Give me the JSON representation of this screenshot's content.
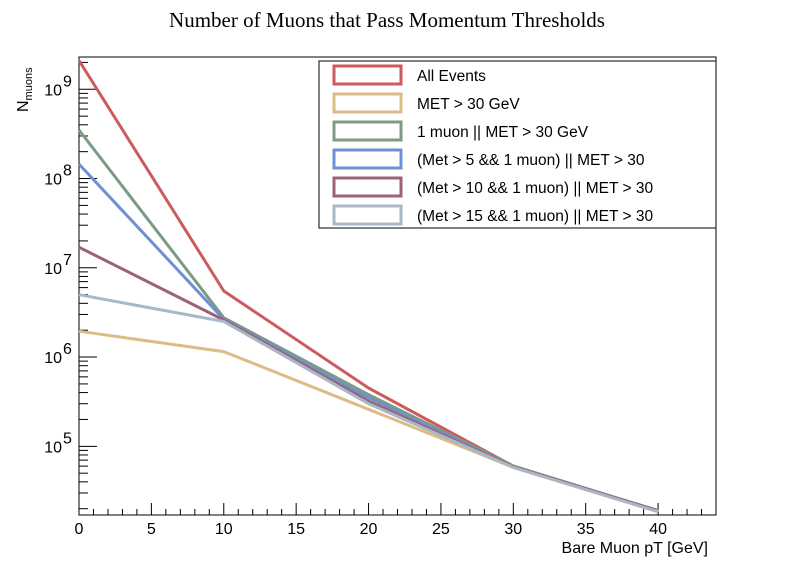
{
  "chart_data": {
    "type": "line",
    "title": "Number of Muons that Pass Momentum Thresholds",
    "xlabel": "Bare Muon pT [GeV]",
    "ylabel": "N",
    "ylabel_sub": "muons",
    "xlim": [
      0,
      44
    ],
    "ylim": [
      17000,
      2300000000
    ],
    "yscale": "log",
    "x_ticks": [
      0,
      5,
      10,
      15,
      20,
      25,
      30,
      35,
      40
    ],
    "y_ticks": [
      {
        "value": 100000,
        "base": "10",
        "exp": "5"
      },
      {
        "value": 1000000,
        "base": "10",
        "exp": "6"
      },
      {
        "value": 10000000,
        "base": "10",
        "exp": "7"
      },
      {
        "value": 100000000,
        "base": "10",
        "exp": "8"
      },
      {
        "value": 1000000000,
        "base": "10",
        "exp": "9"
      }
    ],
    "grid": false,
    "legend_position": "top-right",
    "x": [
      0,
      10,
      20,
      30,
      40
    ],
    "series": [
      {
        "name": "All Events",
        "color": "#cc5b5e",
        "values": [
          2100000000,
          5500000,
          450000,
          60000,
          19000
        ]
      },
      {
        "name": "MET > 30 GeV",
        "color": "#ddbb86",
        "values": [
          1950000,
          1150000,
          260000,
          58000,
          18500
        ]
      },
      {
        "name": "1 muon || MET > 30 GeV",
        "color": "#7b9b84",
        "values": [
          350000000,
          2750000,
          380000,
          60000,
          19000
        ]
      },
      {
        "name": "(Met > 5 && 1 muon) || MET > 30",
        "color": "#6f90d2",
        "values": [
          145000000,
          2650000,
          350000,
          59000,
          19000
        ]
      },
      {
        "name": "(Met > 10 && 1 muon) || MET > 30",
        "color": "#9c6471",
        "values": [
          17000000,
          2600000,
          320000,
          59000,
          19000
        ]
      },
      {
        "name": "(Met > 15 && 1 muon) || MET > 30",
        "color": "#a8b8c8",
        "values": [
          5000000,
          2500000,
          300000,
          58000,
          18500
        ]
      }
    ]
  }
}
